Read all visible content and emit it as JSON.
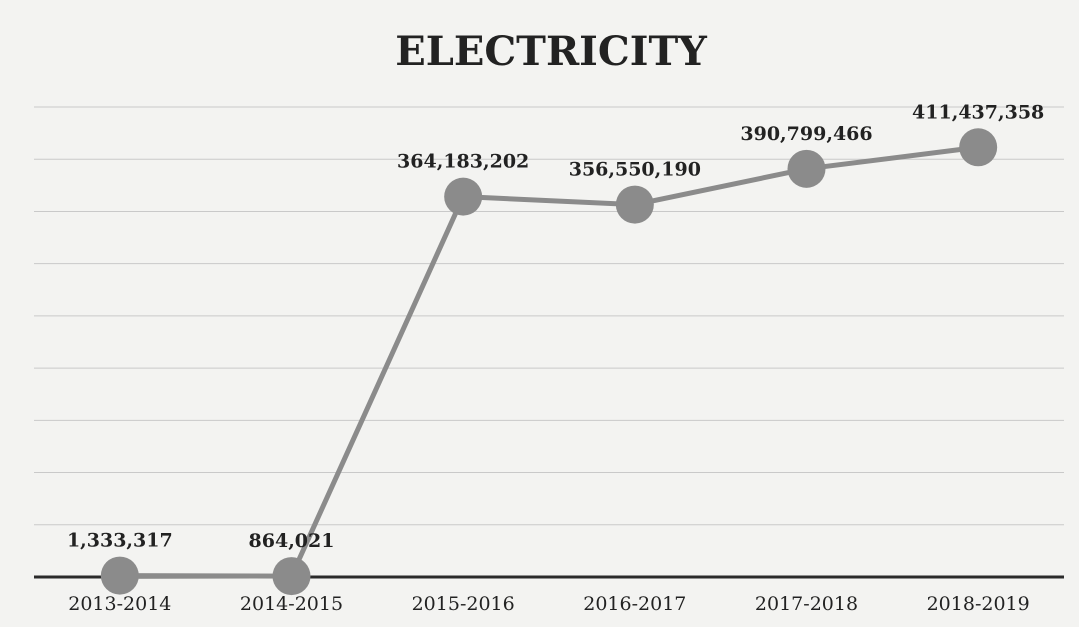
{
  "chart_data": {
    "type": "line",
    "title": "ELECTRICITY",
    "categories": [
      "2013-2014",
      "2014-2015",
      "2015-2016",
      "2016-2017",
      "2017-2018",
      "2018-2019"
    ],
    "series": [
      {
        "color": "#8b8b8b",
        "values": [
          1333317,
          864021,
          364183202,
          356550190,
          390799466,
          411437358
        ],
        "value_labels": [
          "1,333,317",
          "864,021",
          "364,183,202",
          "356,550,190",
          "390,799,466",
          "411,437,358"
        ]
      }
    ],
    "ylim": [
      0,
      450000000
    ],
    "yticks": [
      0,
      50000000,
      100000000,
      150000000,
      200000000,
      250000000,
      300000000,
      350000000,
      400000000,
      450000000
    ],
    "grid": true
  }
}
